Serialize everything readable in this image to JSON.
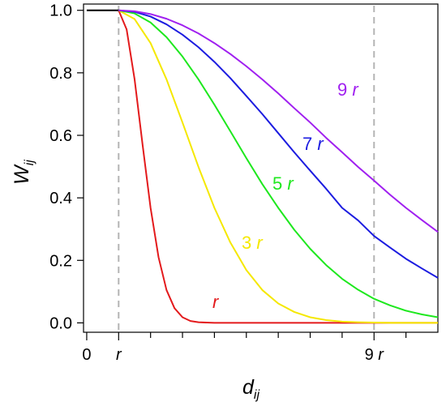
{
  "chart_data": {
    "type": "line",
    "title": "",
    "xlabel": {
      "main": "d",
      "sub": "ij"
    },
    "ylabel": {
      "main": "W",
      "sub": "ij"
    },
    "xlim": [
      -0.1,
      11
    ],
    "ylim": [
      -0.03,
      1.02
    ],
    "x_ticks": [
      {
        "value": 0,
        "label": "0",
        "italic": false
      },
      {
        "value": 1,
        "label": "r",
        "italic": true
      },
      {
        "value": 9,
        "label": "9 r",
        "italic": true
      }
    ],
    "x_minor_ticks": [
      2,
      3,
      4,
      5,
      6,
      7,
      8,
      10
    ],
    "y_ticks": [
      {
        "value": 0.0,
        "label": "0.0"
      },
      {
        "value": 0.2,
        "label": "0.2"
      },
      {
        "value": 0.4,
        "label": "0.4"
      },
      {
        "value": 0.6,
        "label": "0.6"
      },
      {
        "value": 0.8,
        "label": "0.8"
      },
      {
        "value": 1.0,
        "label": "1.0"
      }
    ],
    "reference_lines": [
      {
        "axis": "x",
        "value": 1,
        "color": "#b4b4b4",
        "style": "dashed"
      },
      {
        "axis": "x",
        "value": 9,
        "color": "#b4b4b4",
        "style": "dashed"
      }
    ],
    "flat_segment": {
      "x": [
        0,
        1
      ],
      "y": 1.0,
      "color": "#000000"
    },
    "series": [
      {
        "name": "r",
        "color": "#e31a1c",
        "label": {
          "number": "",
          "unit": "r"
        },
        "x": [
          1,
          1.25,
          1.5,
          1.75,
          2,
          2.25,
          2.5,
          2.75,
          3,
          3.25,
          3.5,
          4,
          4.5,
          5,
          6,
          7,
          8,
          9,
          10,
          11
        ],
        "y": [
          1.0,
          0.939,
          0.779,
          0.57,
          0.368,
          0.21,
          0.105,
          0.047,
          0.018,
          0.006,
          0.002,
          0.0,
          0.0,
          0.0,
          0.0,
          0.0,
          0.0,
          0.0,
          0.0,
          0.0
        ]
      },
      {
        "name": "3 r",
        "color": "#f5e800",
        "label": {
          "number": "3",
          "unit": "r"
        },
        "x": [
          1,
          1.5,
          2,
          2.5,
          3,
          3.5,
          4,
          4.5,
          5,
          5.5,
          6,
          6.5,
          7,
          7.5,
          8,
          8.5,
          9,
          9.5,
          10,
          10.5,
          11
        ],
        "y": [
          1.0,
          0.972,
          0.895,
          0.779,
          0.641,
          0.499,
          0.368,
          0.257,
          0.169,
          0.105,
          0.062,
          0.035,
          0.018,
          0.009,
          0.004,
          0.002,
          0.001,
          0.0,
          0.0,
          0.0,
          0.0
        ]
      },
      {
        "name": "5 r",
        "color": "#1ee81e",
        "label": {
          "number": "5",
          "unit": "r"
        },
        "x": [
          1,
          1.5,
          2,
          2.5,
          3,
          3.5,
          4,
          4.5,
          5,
          5.5,
          6,
          6.5,
          7,
          7.5,
          8,
          8.5,
          9,
          9.5,
          10,
          10.5,
          11
        ],
        "y": [
          1.0,
          0.99,
          0.961,
          0.914,
          0.852,
          0.779,
          0.698,
          0.613,
          0.527,
          0.444,
          0.368,
          0.298,
          0.237,
          0.185,
          0.141,
          0.106,
          0.077,
          0.056,
          0.039,
          0.027,
          0.018
        ]
      },
      {
        "name": "7 r",
        "color": "#1c1ce0",
        "label": {
          "number": "7",
          "unit": "r"
        },
        "x": [
          1,
          1.5,
          2,
          2.5,
          3,
          3.5,
          4,
          4.5,
          5,
          5.5,
          6,
          6.5,
          7,
          7.5,
          8,
          8.5,
          9,
          9.5,
          10,
          10.5,
          11
        ],
        "y": [
          1.0,
          0.995,
          0.98,
          0.955,
          0.922,
          0.882,
          0.835,
          0.783,
          0.726,
          0.668,
          0.607,
          0.546,
          0.487,
          0.429,
          0.368,
          0.328,
          0.278,
          0.241,
          0.205,
          0.174,
          0.144
        ]
      },
      {
        "name": "9 r",
        "color": "#a020f0",
        "label": {
          "number": "9",
          "unit": "r"
        },
        "x": [
          1,
          1.5,
          2,
          2.5,
          3,
          3.5,
          4,
          4.5,
          5,
          5.5,
          6,
          6.5,
          7,
          7.5,
          8,
          8.5,
          9,
          9.5,
          10,
          10.5,
          11
        ],
        "y": [
          1.0,
          0.997,
          0.988,
          0.973,
          0.952,
          0.926,
          0.895,
          0.86,
          0.821,
          0.779,
          0.734,
          0.687,
          0.641,
          0.592,
          0.546,
          0.499,
          0.455,
          0.41,
          0.368,
          0.329,
          0.291
        ]
      }
    ]
  }
}
